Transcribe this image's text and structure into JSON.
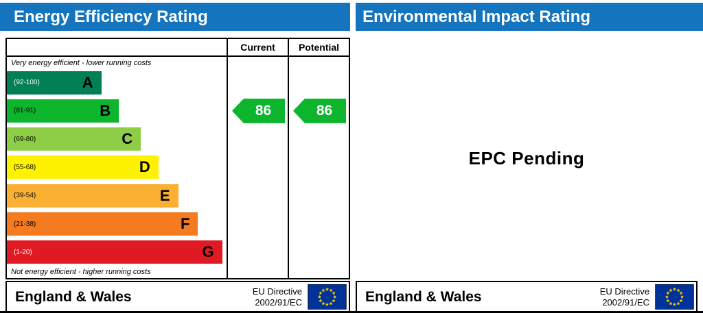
{
  "header": {
    "left_title": "Energy Efficiency Rating",
    "right_title": "Environmental Impact Rating"
  },
  "colors": {
    "header_blue": "#1474be",
    "arrow_green": "#0cb52c",
    "eu_flag_blue": "#003399",
    "eu_star_yellow": "#ffcc00"
  },
  "epc": {
    "columns": {
      "current": "Current",
      "potential": "Potential"
    },
    "top_note": "Very energy efficient - lower running costs",
    "bottom_note": "Not energy efficient - higher running costs",
    "bands": [
      {
        "letter": "A",
        "range": "(92-100)",
        "color": "#008054",
        "width_pct": 43,
        "text_color": "#ffffff"
      },
      {
        "letter": "B",
        "range": "(81-91)",
        "color": "#0cb52c",
        "width_pct": 51,
        "text_color": "#000000"
      },
      {
        "letter": "C",
        "range": "(69-80)",
        "color": "#8dce46",
        "width_pct": 61,
        "text_color": "#000000"
      },
      {
        "letter": "D",
        "range": "(55-68)",
        "color": "#fff200",
        "width_pct": 69,
        "text_color": "#000000"
      },
      {
        "letter": "E",
        "range": "(39-54)",
        "color": "#fbb034",
        "width_pct": 78,
        "text_color": "#000000"
      },
      {
        "letter": "F",
        "range": "(21-38)",
        "color": "#f47b20",
        "width_pct": 87,
        "text_color": "#000000"
      },
      {
        "letter": "G",
        "range": "(1-20)",
        "color": "#e01a22",
        "width_pct": 98,
        "text_color": "#ffffff"
      }
    ],
    "current": {
      "value": "86",
      "band_index": 1
    },
    "potential": {
      "value": "86",
      "band_index": 1
    }
  },
  "right_panel": {
    "message": "EPC Pending"
  },
  "footer": {
    "region": "England & Wales",
    "directive_line1": "EU Directive",
    "directive_line2": "2002/91/EC"
  },
  "chart_data": {
    "type": "bar",
    "title": "Energy Efficiency Rating",
    "categories": [
      "A (92-100)",
      "B (81-91)",
      "C (69-80)",
      "D (55-68)",
      "E (39-54)",
      "F (21-38)",
      "G (1-20)"
    ],
    "values": [
      43,
      51,
      61,
      69,
      78,
      87,
      98
    ],
    "current_rating": 86,
    "current_band": "B",
    "potential_rating": 86,
    "potential_band": "B",
    "column_headers": [
      "Current",
      "Potential"
    ],
    "right_panel_status": "EPC Pending",
    "xlabel": "",
    "ylabel": "",
    "legend": "none",
    "grid": false
  }
}
